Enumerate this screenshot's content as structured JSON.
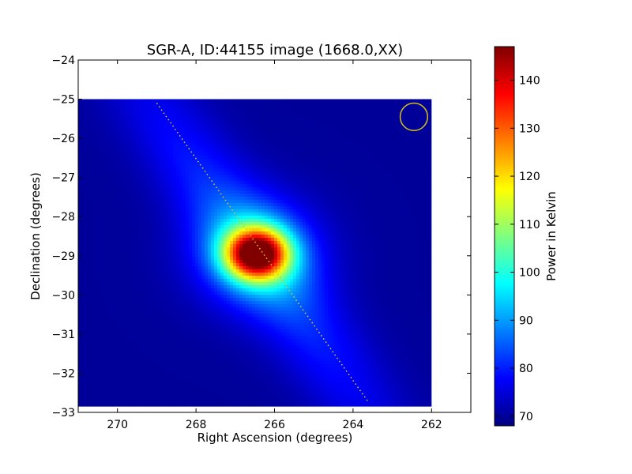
{
  "chart_data": {
    "type": "heatmap",
    "title": "SGR-A, ID:44155 image (1668.0,XX)",
    "xlabel": "Right Ascension (degrees)",
    "ylabel": "Declination (degrees)",
    "colorbar_label": "Power in Kelvin",
    "xlim": [
      271,
      261
    ],
    "ylim": [
      -33,
      -24
    ],
    "x_ticks": [
      270,
      268,
      266,
      264,
      262
    ],
    "y_ticks": [
      -24,
      -25,
      -26,
      -27,
      -28,
      -29,
      -30,
      -31,
      -32,
      -33
    ],
    "colorbar_range": [
      68,
      147
    ],
    "colorbar_ticks": [
      70,
      80,
      90,
      100,
      110,
      120,
      130,
      140
    ],
    "colormap": "jet",
    "image_extent": {
      "ra": [
        271,
        262
      ],
      "dec": [
        -32.85,
        -25
      ]
    },
    "grid": false,
    "peak": {
      "ra": 266.45,
      "dec": -28.95,
      "value": 147
    },
    "background_value": 70,
    "beam_circle": {
      "ra": 262.45,
      "dec": -25.45,
      "radius_deg": 0.35,
      "color": "#d4c21a"
    },
    "galactic_plane": {
      "points": [
        [
          269.0,
          -25.1
        ],
        [
          263.6,
          -32.75
        ]
      ],
      "color": "#d4c21a",
      "style": "dotted"
    }
  }
}
